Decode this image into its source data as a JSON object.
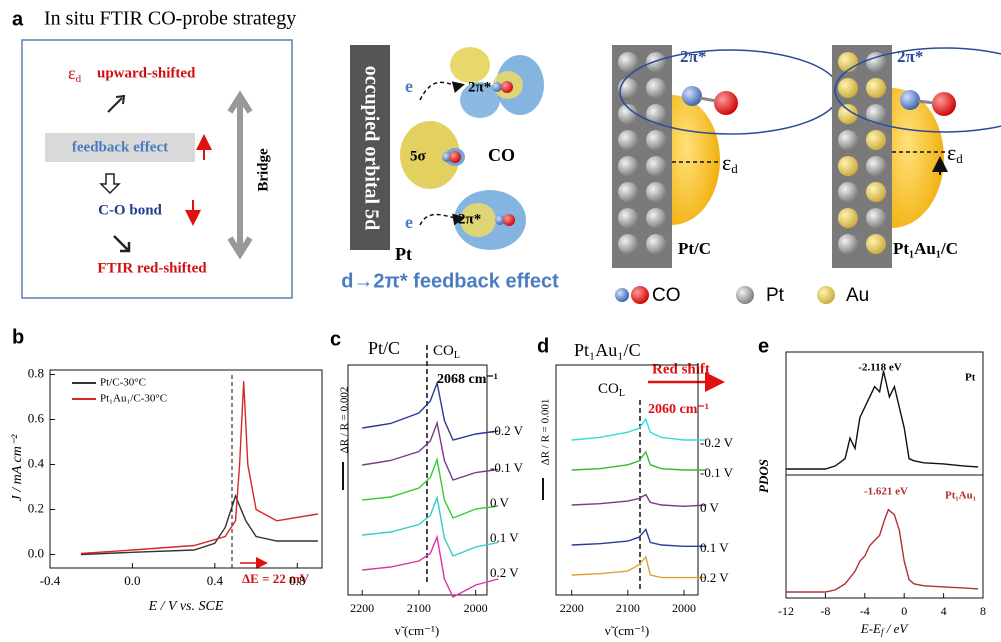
{
  "panel_a": {
    "label": "a",
    "title": "In situ FTIR CO-probe strategy",
    "eps": "ε",
    "eps_sub": "d",
    "upward": "upward-shifted",
    "feedback": "feedback effect",
    "co_bond": "C-O bond",
    "ftir": "FTIR red-shifted",
    "bridge": "Bridge",
    "orbital": "occupied orbital 5d",
    "e1": "e",
    "e2": "e",
    "pi_top": "2π*",
    "pi_bottom": "2π*",
    "sigma": "5σ",
    "co": "CO",
    "pt": "Pt",
    "caption": "d→2π* feedback effect",
    "ptc_pi": "2π*",
    "ptc_eps": "ε",
    "ptc_eps_sub": "d",
    "ptc_label": "Pt/C",
    "ptau_pi": "2π*",
    "ptau_eps": "ε",
    "ptau_eps_sub": "d",
    "ptau_label": "Pt₁Au₁/C",
    "legend": [
      "CO",
      "Pt",
      "Au"
    ]
  },
  "chart_data": [
    {
      "type": "line",
      "label": "b",
      "xlabel": "E / V vs. SCE",
      "ylabel": "J / mA cm⁻²",
      "annotation": "ΔE = 22 mV",
      "xlim": [
        -0.4,
        0.92
      ],
      "xticks": [
        -0.4,
        {
          "value": 0,
          "label": "0.0"
        },
        0.4,
        0.8
      ],
      "ylim": [
        -0.06,
        0.82
      ],
      "yticks": [
        {
          "value": 0,
          "label": "0.0"
        },
        0.2,
        0.4,
        0.6,
        0.8
      ],
      "series": [
        {
          "name": "Pt/C-30°C",
          "color": "#333333",
          "x": [
            -0.25,
            0.0,
            0.3,
            0.4,
            0.45,
            0.5,
            0.55,
            0.6,
            0.7,
            0.9
          ],
          "values": [
            0.0,
            0.01,
            0.02,
            0.05,
            0.12,
            0.26,
            0.15,
            0.08,
            0.06,
            0.06
          ]
        },
        {
          "name": "Pt₁Au₁/C-30°C",
          "color": "#d62728",
          "x": [
            -0.25,
            0.0,
            0.3,
            0.45,
            0.5,
            0.52,
            0.54,
            0.56,
            0.6,
            0.7,
            0.9
          ],
          "values": [
            0.005,
            0.02,
            0.04,
            0.08,
            0.15,
            0.4,
            0.77,
            0.4,
            0.2,
            0.15,
            0.18
          ]
        }
      ]
    },
    {
      "type": "spectra",
      "label": "c",
      "title": "Pt/C",
      "co": "CO",
      "co_sub": "L",
      "peak": "2068 cm⁻¹",
      "scale": "ΔR / R = 0.002",
      "xlabel": "ν̃ (cm⁻¹)",
      "xlim": [
        2225,
        1980
      ],
      "xticks": [
        2200,
        2100,
        2000
      ],
      "x": [
        2200,
        2150,
        2100,
        2080,
        2068,
        2055,
        2040,
        2000,
        1960
      ],
      "series": [
        {
          "name": "-0.2 V",
          "color": "#2b3a9a",
          "values": [
            0,
            3,
            10,
            18,
            30,
            5,
            -8,
            -4,
            -2
          ]
        },
        {
          "name": "-0.1 V",
          "color": "#7a3a8a",
          "values": [
            0,
            3,
            9,
            16,
            28,
            3,
            -10,
            -5,
            -3
          ]
        },
        {
          "name": "0 V",
          "color": "#33cc33",
          "values": [
            0,
            2,
            8,
            15,
            27,
            0,
            -12,
            -6,
            -4
          ]
        },
        {
          "name": "0.1 V",
          "color": "#33cccc",
          "values": [
            0,
            2,
            7,
            13,
            25,
            -2,
            -14,
            -8,
            -5
          ]
        },
        {
          "name": "0.2 V",
          "color": "#dd33aa",
          "values": [
            0,
            2,
            6,
            11,
            22,
            -6,
            -18,
            -10,
            -6
          ]
        }
      ]
    },
    {
      "type": "spectra",
      "label": "d",
      "title": "Pt₁Au₁/C",
      "co": "CO",
      "co_sub": "L",
      "peak": "2060 cm⁻¹",
      "shift": "Red shift",
      "scale": "ΔR / R = 0.001",
      "xlabel": "ν̃ (cm⁻¹)",
      "xlim": [
        2228,
        1975
      ],
      "xticks": [
        2200,
        2100,
        2000
      ],
      "x": [
        2200,
        2150,
        2100,
        2080,
        2068,
        2060,
        2040,
        2000,
        1960
      ],
      "series": [
        {
          "name": "-0.2 V",
          "color": "#33dddd",
          "values": [
            0,
            2,
            6,
            9,
            16,
            6,
            2,
            0,
            0
          ]
        },
        {
          "name": "-0.1 V",
          "color": "#33bb33",
          "values": [
            0,
            1,
            4,
            7,
            14,
            4,
            1,
            0,
            0
          ]
        },
        {
          "name": "0 V",
          "color": "#7a3a8a",
          "values": [
            0,
            1,
            3,
            5,
            8,
            2,
            0,
            -1,
            0
          ]
        },
        {
          "name": "0.1 V",
          "color": "#2b3a9a",
          "values": [
            0,
            1,
            3,
            6,
            12,
            2,
            0,
            -1,
            -1
          ]
        },
        {
          "name": "0.2 V",
          "color": "#e0a030",
          "values": [
            0,
            1,
            3,
            8,
            14,
            0,
            -2,
            -2,
            -2
          ]
        }
      ]
    },
    {
      "type": "dos",
      "label": "e",
      "ylabel": "PDOS",
      "annotation": "-2.118 eV",
      "name": "Pt",
      "xlim": [
        -12,
        8
      ],
      "series": [
        {
          "color": "#111111",
          "x": [
            -12,
            -8,
            -7,
            -6,
            -5.5,
            -5,
            -4.5,
            -4,
            -3.5,
            -3,
            -2.5,
            -2.1,
            -1.5,
            -1,
            -0.5,
            0,
            0.5,
            1,
            2,
            4,
            6,
            7.5
          ],
          "values": [
            0,
            0,
            0.03,
            0.1,
            0.3,
            0.2,
            0.5,
            0.6,
            0.7,
            0.8,
            0.75,
            0.95,
            0.7,
            0.8,
            0.6,
            0.4,
            0.1,
            0.08,
            0.06,
            0.05,
            0.03,
            0.02
          ]
        }
      ]
    },
    {
      "type": "dos",
      "annotation": "-1.621 eV",
      "name": "Pt₁Au₁",
      "xlabel": "E-E",
      "xlabel_sub": "f",
      "xlabel_unit": " / eV",
      "xlim": [
        -12,
        8
      ],
      "xticks": [
        -12,
        -8,
        -4,
        0,
        4,
        8
      ],
      "series": [
        {
          "color": "#b03030",
          "x": [
            -12,
            -8,
            -7,
            -6,
            -5,
            -4.5,
            -4,
            -3.5,
            -3,
            -2.5,
            -2,
            -1.6,
            -1,
            -0.5,
            0,
            0.5,
            1,
            2,
            4,
            6,
            7.5
          ],
          "values": [
            0,
            0,
            0.02,
            0.08,
            0.2,
            0.3,
            0.35,
            0.45,
            0.5,
            0.55,
            0.7,
            0.8,
            0.75,
            0.6,
            0.3,
            0.12,
            0.08,
            0.06,
            0.05,
            0.04,
            0.03
          ]
        }
      ]
    }
  ]
}
